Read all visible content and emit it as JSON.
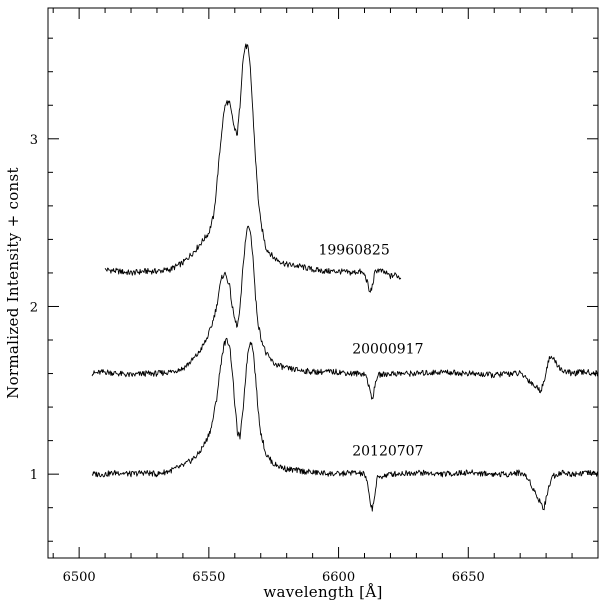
{
  "chart_data": {
    "type": "line",
    "title": "",
    "xlabel": "wavelength [Å]",
    "ylabel": "Normalized Intensity   + const",
    "xlim": [
      6488,
      6700
    ],
    "ylim": [
      0.5,
      3.78
    ],
    "xticks": [
      6500,
      6550,
      6600,
      6650
    ],
    "yticks": [
      1,
      2,
      3
    ],
    "grid": false,
    "legend": "none",
    "line_color": "#000000",
    "series": [
      {
        "name": "19960825",
        "x": [
          6510,
          6515,
          6520,
          6525,
          6530,
          6535,
          6540,
          6545,
          6548,
          6550,
          6552,
          6553,
          6555,
          6556,
          6557,
          6558,
          6559,
          6560,
          6561,
          6562,
          6563,
          6564,
          6565,
          6566,
          6567,
          6568,
          6569,
          6570,
          6572,
          6575,
          6580,
          6585,
          6590,
          6595,
          6600,
          6605,
          6608,
          6610,
          6611,
          6612,
          6613,
          6614,
          6615,
          6618,
          6620,
          6622,
          6624
        ],
        "y": [
          2.22,
          2.21,
          2.2,
          2.21,
          2.21,
          2.22,
          2.26,
          2.34,
          2.4,
          2.44,
          2.55,
          2.72,
          3.05,
          3.18,
          3.22,
          3.21,
          3.13,
          3.05,
          3.03,
          3.2,
          3.45,
          3.55,
          3.55,
          3.42,
          3.15,
          2.88,
          2.65,
          2.5,
          2.35,
          2.29,
          2.25,
          2.24,
          2.22,
          2.21,
          2.21,
          2.2,
          2.21,
          2.19,
          2.15,
          2.08,
          2.12,
          2.2,
          2.22,
          2.2,
          2.18,
          2.19,
          2.17
        ]
      },
      {
        "name": "20000917",
        "x": [
          6505,
          6510,
          6515,
          6520,
          6525,
          6530,
          6535,
          6540,
          6543,
          6546,
          6549,
          6551,
          6553,
          6554,
          6555,
          6556,
          6557,
          6558,
          6559,
          6560,
          6561,
          6562,
          6563,
          6564,
          6565,
          6566,
          6567,
          6568,
          6569,
          6570,
          6572,
          6575,
          6580,
          6590,
          6600,
          6605,
          6610,
          6611,
          6612,
          6613,
          6614,
          6615,
          6620,
          6630,
          6640,
          6650,
          6660,
          6665,
          6670,
          6672,
          6674,
          6676,
          6678,
          6679,
          6680,
          6681,
          6682,
          6684,
          6686,
          6690,
          6695,
          6700
        ],
        "y": [
          1.6,
          1.61,
          1.6,
          1.59,
          1.6,
          1.6,
          1.61,
          1.63,
          1.67,
          1.72,
          1.8,
          1.88,
          2.0,
          2.1,
          2.17,
          2.2,
          2.17,
          2.12,
          2.0,
          1.92,
          1.88,
          1.98,
          2.2,
          2.38,
          2.48,
          2.45,
          2.3,
          2.05,
          1.9,
          1.82,
          1.72,
          1.66,
          1.63,
          1.61,
          1.61,
          1.6,
          1.6,
          1.57,
          1.5,
          1.45,
          1.52,
          1.59,
          1.6,
          1.6,
          1.61,
          1.6,
          1.59,
          1.6,
          1.6,
          1.58,
          1.55,
          1.52,
          1.5,
          1.54,
          1.62,
          1.68,
          1.7,
          1.66,
          1.62,
          1.6,
          1.61,
          1.6
        ]
      },
      {
        "name": "20120707",
        "x": [
          6505,
          6510,
          6515,
          6520,
          6525,
          6530,
          6535,
          6540,
          6543,
          6546,
          6549,
          6551,
          6553,
          6554,
          6555,
          6556,
          6557,
          6558,
          6559,
          6560,
          6561,
          6562,
          6563,
          6564,
          6565,
          6566,
          6567,
          6568,
          6569,
          6570,
          6572,
          6575,
          6580,
          6590,
          6600,
          6605,
          6610,
          6611,
          6612,
          6613,
          6614,
          6615,
          6620,
          6630,
          6640,
          6650,
          6660,
          6665,
          6670,
          6672,
          6674,
          6676,
          6678,
          6679,
          6680,
          6681,
          6682,
          6684,
          6686,
          6690,
          6695,
          6700
        ],
        "y": [
          1.0,
          1.0,
          1.01,
          1.0,
          1.01,
          1.0,
          1.02,
          1.05,
          1.08,
          1.12,
          1.2,
          1.28,
          1.45,
          1.58,
          1.7,
          1.78,
          1.8,
          1.77,
          1.62,
          1.42,
          1.25,
          1.22,
          1.35,
          1.55,
          1.72,
          1.8,
          1.75,
          1.58,
          1.38,
          1.25,
          1.12,
          1.06,
          1.03,
          1.01,
          1.0,
          1.01,
          1.0,
          0.95,
          0.85,
          0.79,
          0.88,
          0.98,
          1.0,
          1.01,
          1.0,
          1.01,
          1.0,
          1.0,
          1.01,
          0.99,
          0.95,
          0.88,
          0.83,
          0.79,
          0.85,
          0.92,
          0.98,
          1.0,
          1.01,
          1.0,
          1.01,
          1.0
        ]
      }
    ],
    "annotations": [
      {
        "text": "19960825",
        "x": 6606,
        "y": 2.31
      },
      {
        "text": "20000917",
        "x": 6619,
        "y": 1.72
      },
      {
        "text": "20120707",
        "x": 6619,
        "y": 1.11
      }
    ]
  }
}
